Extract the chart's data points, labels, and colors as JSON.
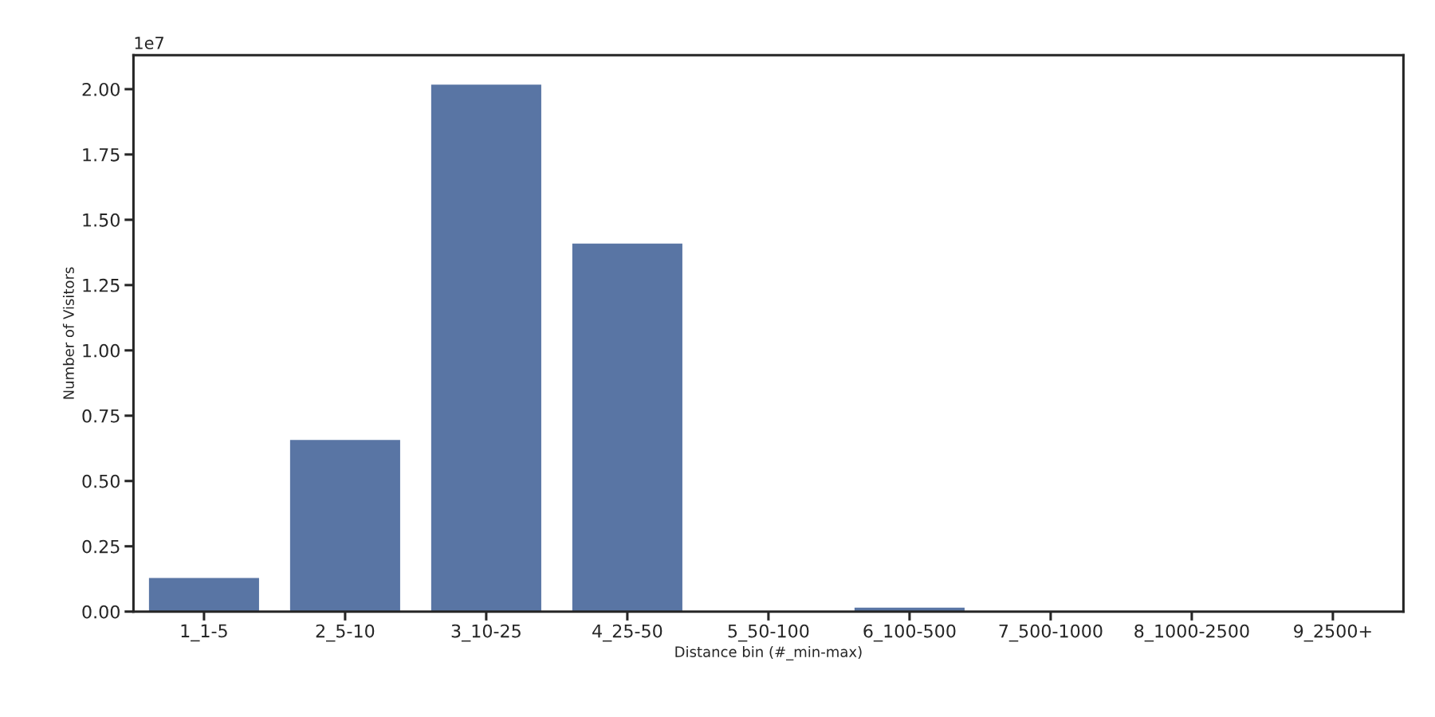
{
  "chart_data": {
    "type": "bar",
    "xlabel": "Distance bin (#_min-max)",
    "ylabel": "Number of Visitors",
    "categories": [
      "1_1-5",
      "2_5-10",
      "3_10-25",
      "4_25-50",
      "5_50-100",
      "6_100-500",
      "7_500-1000",
      "8_1000-2500",
      "9_2500+"
    ],
    "values": [
      0.129,
      0.657,
      2.017,
      1.409,
      0,
      0.015,
      0,
      0,
      0
    ],
    "color": "#5975a4",
    "ylim": [
      0,
      2.13
    ],
    "yticks": [
      {
        "value": 0,
        "label": "0.00"
      },
      {
        "value": 0.25,
        "label": "0.25"
      },
      {
        "value": 0.5,
        "label": "0.50"
      },
      {
        "value": 0.75,
        "label": "0.75"
      },
      {
        "value": 1,
        "label": "1.00"
      },
      {
        "value": 1.25,
        "label": "1.25"
      },
      {
        "value": 1.5,
        "label": "1.50"
      },
      {
        "value": 1.75,
        "label": "1.75"
      },
      {
        "value": 2,
        "label": "2.00"
      }
    ],
    "annotations": [
      "1e7"
    ],
    "grid": false
  }
}
